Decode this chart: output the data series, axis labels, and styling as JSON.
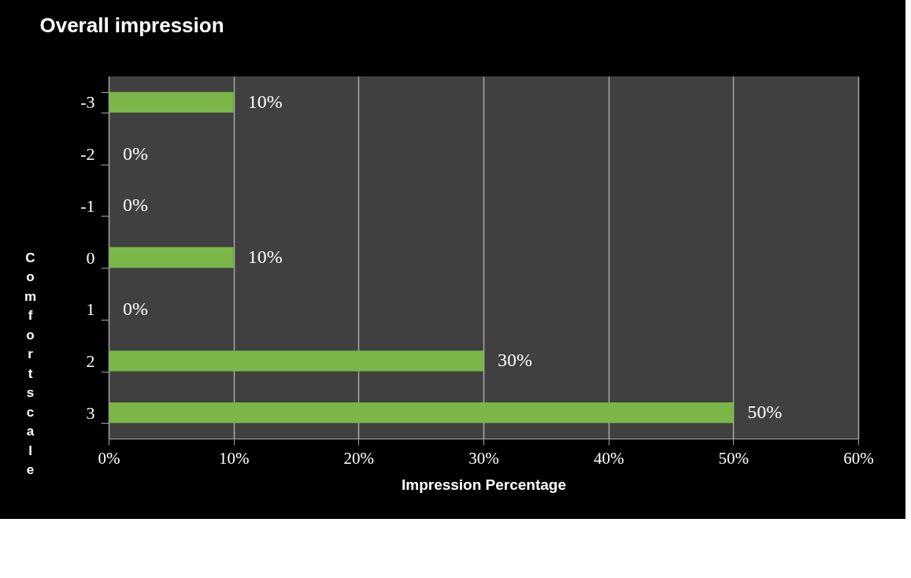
{
  "chart_data": {
    "type": "bar",
    "orientation": "horizontal",
    "title": "Overall impression",
    "xlabel": "Impression Percentage",
    "ylabel": "Comfort scale",
    "categories": [
      "-3",
      "-2",
      "-1",
      "0",
      "1",
      "2",
      "3"
    ],
    "values": [
      10,
      0,
      0,
      10,
      0,
      30,
      50
    ],
    "value_labels": [
      "10%",
      "0%",
      "0%",
      "10%",
      "0%",
      "30%",
      "50%"
    ],
    "color": "#7ab648",
    "xlim": [
      0,
      60
    ],
    "xticks": [
      {
        "value": 0,
        "label": "0%"
      },
      {
        "value": 10,
        "label": "10%"
      },
      {
        "value": 20,
        "label": "20%"
      },
      {
        "value": 30,
        "label": "30%"
      },
      {
        "value": 40,
        "label": "40%"
      },
      {
        "value": 50,
        "label": "50%"
      },
      {
        "value": 60,
        "label": "60%"
      }
    ],
    "grid": "x"
  }
}
